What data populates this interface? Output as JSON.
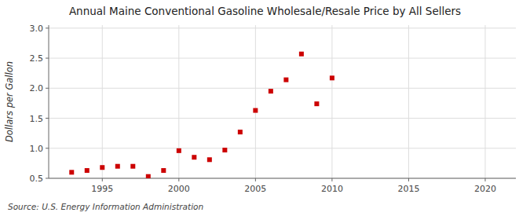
{
  "chart_data": {
    "type": "scatter",
    "title": "Annual Maine Conventional Gasoline Wholesale/Resale Price by All Sellers",
    "y_label": "Dollars per Gallon",
    "source": "Source: U.S. Energy Information Administration",
    "x": [
      1993,
      1994,
      1995,
      1996,
      1997,
      1998,
      1999,
      2000,
      2001,
      2002,
      2003,
      2004,
      2005,
      2006,
      2007,
      2008,
      2009,
      2010
    ],
    "values": [
      0.6,
      0.63,
      0.68,
      0.7,
      0.7,
      0.53,
      0.63,
      0.96,
      0.85,
      0.81,
      0.97,
      1.27,
      1.63,
      1.95,
      2.14,
      2.57,
      1.74,
      2.17
    ],
    "color": "#cc0000",
    "marker": "square",
    "xlim": [
      1991.5,
      2022
    ],
    "ylim": [
      0.5,
      3.05
    ],
    "xticks": [
      1995,
      2000,
      2005,
      2010,
      2015,
      2020
    ],
    "yticks": [
      0.5,
      {
        "value": 1.0,
        "label": "1.0"
      },
      1.5,
      {
        "value": 2.0,
        "label": "2.0"
      },
      2.5,
      {
        "value": 3.0,
        "label": "3.0"
      }
    ],
    "grid": true
  }
}
